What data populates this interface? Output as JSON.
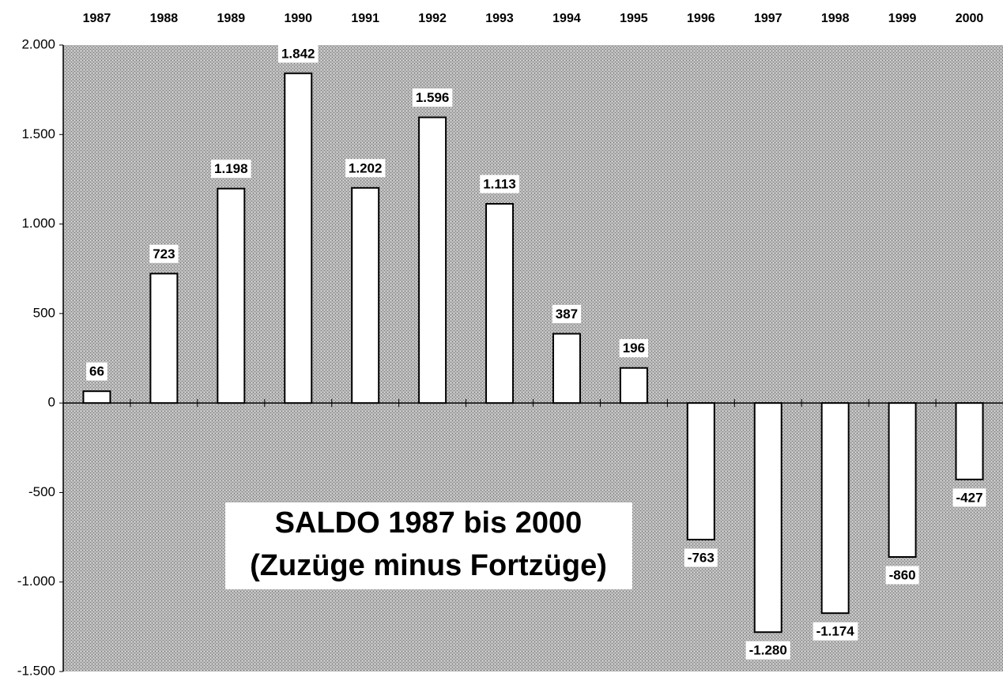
{
  "chart_data": {
    "type": "bar",
    "title": [
      "SALDO 1987 bis 2000",
      "(Zuzüge minus Fortzüge)"
    ],
    "categories": [
      "1987",
      "1988",
      "1989",
      "1990",
      "1991",
      "1992",
      "1993",
      "1994",
      "1995",
      "1996",
      "1997",
      "1998",
      "1999",
      "2000"
    ],
    "values": [
      66,
      723,
      1198,
      1842,
      1202,
      1596,
      1113,
      387,
      196,
      -763,
      -1280,
      -1174,
      -860,
      -427
    ],
    "value_labels": [
      "66",
      "723",
      "1.198",
      "1.842",
      "1.202",
      "1.596",
      "1.113",
      "387",
      "196",
      "-763",
      "-1.280",
      "-1.174",
      "-860",
      "-427"
    ],
    "color": "#ffffff",
    "ylim": [
      -1500,
      2000
    ],
    "yticks": [
      {
        "value": -1500,
        "label": "-1.500"
      },
      {
        "value": -1000,
        "label": "-1.000"
      },
      -500,
      0,
      500,
      {
        "value": 1000,
        "label": "1.000"
      },
      {
        "value": 1500,
        "label": "1.500"
      },
      {
        "value": 2000,
        "label": "2.000"
      }
    ],
    "grid": false
  }
}
